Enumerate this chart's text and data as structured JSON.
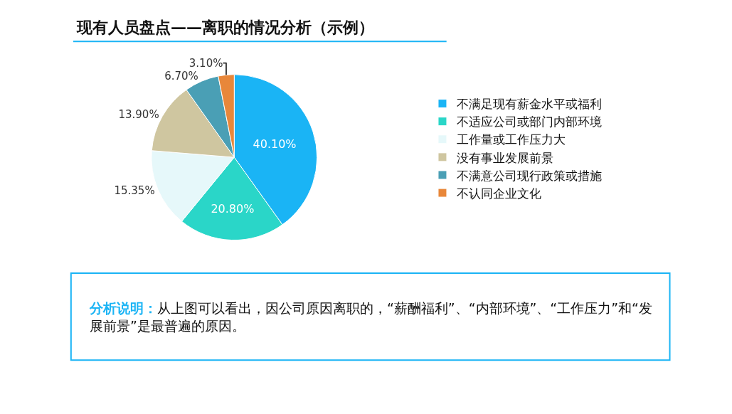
{
  "chart_data": {
    "type": "pie",
    "title": "现有人员盘点——离职的情况分析（示例）",
    "categories": [
      "不满足现有薪金水平或福利",
      "不适应公司或部门内部环境",
      "工作量或工作压力大",
      "没有事业发展前景",
      "不满意公司现行政策或措施",
      "不认同企业文化"
    ],
    "values": [
      40.1,
      20.8,
      15.35,
      13.9,
      6.7,
      3.1
    ],
    "value_labels": [
      "40.10%",
      "20.80%",
      "15.35%",
      "13.90%",
      "6.70%",
      "3.10%"
    ],
    "colors": [
      "#1ab4f5",
      "#2ad6c8",
      "#e6f8fa",
      "#cfc6a0",
      "#4a9fb5",
      "#e8873a"
    ],
    "legend": "right",
    "annotations": [
      "分析说明：从上图可以看出，因公司原因离职的，“薪酬福利”、“内部环境”、“工作压力”和“发展前景”是最普遍的原因。"
    ]
  }
}
